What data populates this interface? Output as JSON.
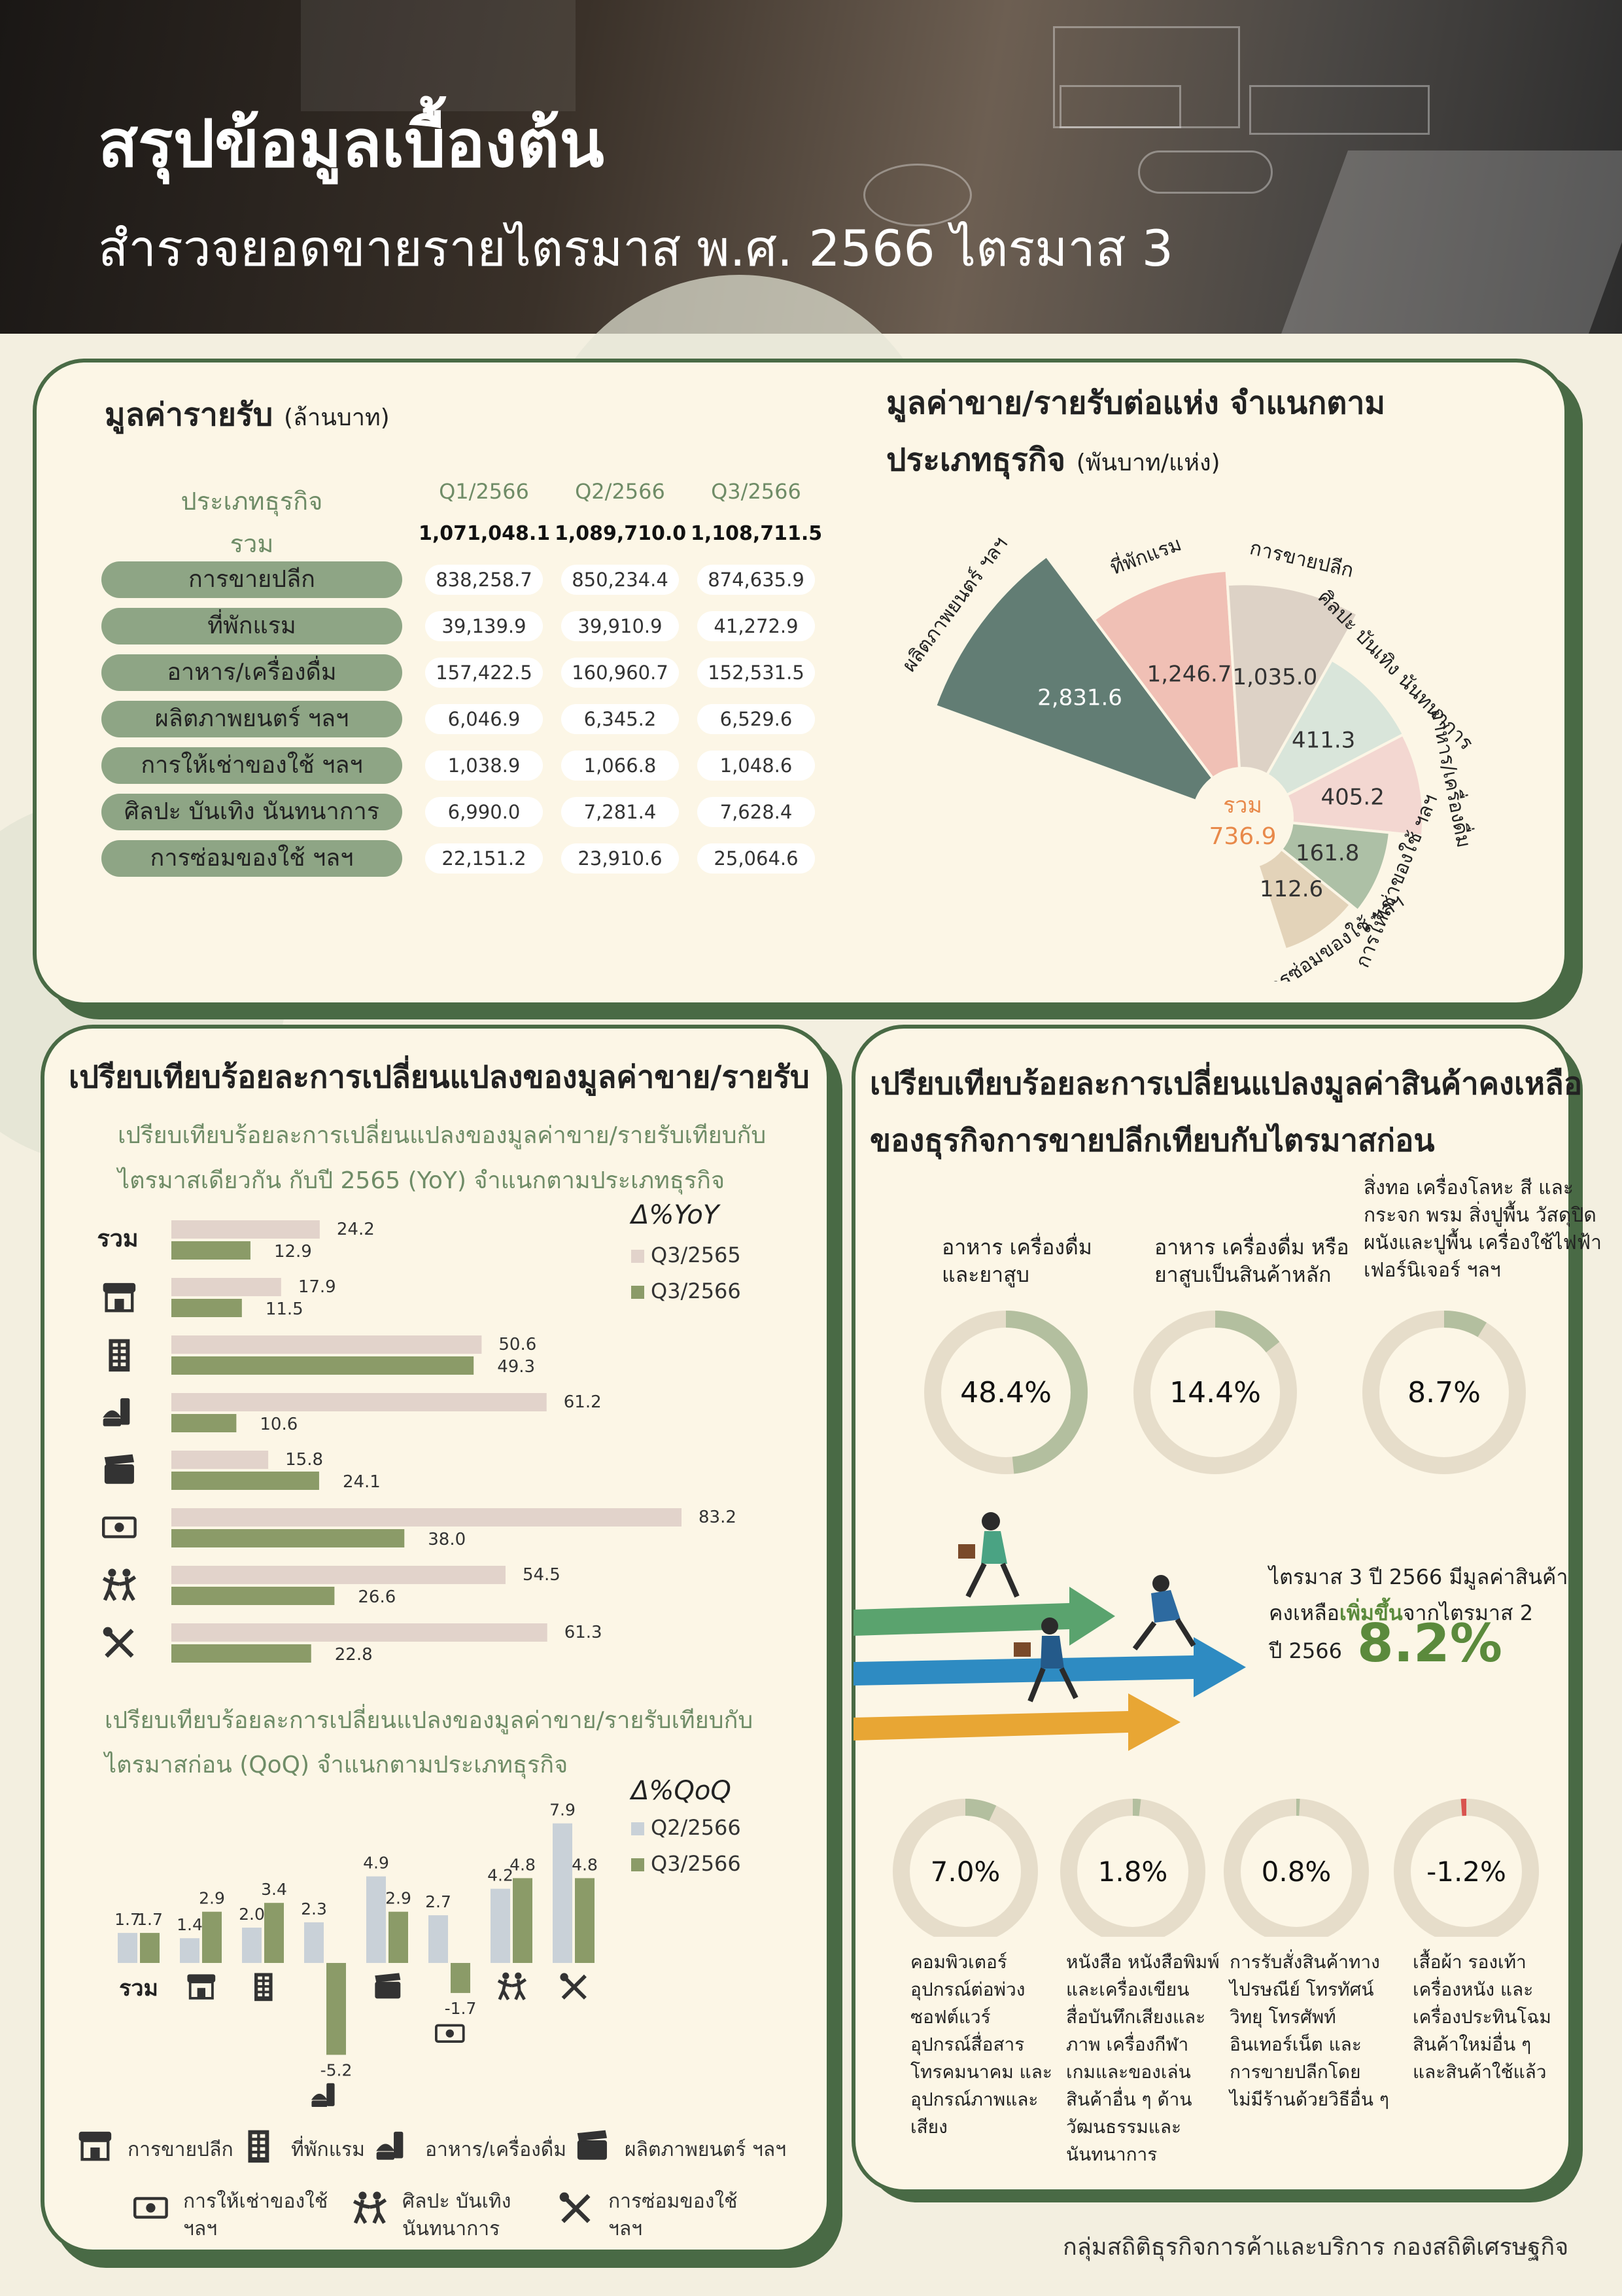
{
  "header": {
    "title": "สรุปข้อมูลเบื้องต้น",
    "subtitle": "สำรวจยอดขายรายไตรมาส พ.ศ. 2566 ไตรมาส 3"
  },
  "revenue_panel": {
    "title": "มูลค่ารายรับ",
    "unit": "(ล้านบาท)",
    "col_label": "ประเภทธุรกิจ",
    "total_label": "รวม",
    "quarters": [
      "Q1/2566",
      "Q2/2566",
      "Q3/2566"
    ],
    "totals": [
      "1,071,048.1",
      "1,089,710.0",
      "1,108,711.5"
    ],
    "rows": [
      {
        "label": "การขายปลีก",
        "values": [
          "838,258.7",
          "850,234.4",
          "874,635.9"
        ]
      },
      {
        "label": "ที่พักแรม",
        "values": [
          "39,139.9",
          "39,910.9",
          "41,272.9"
        ]
      },
      {
        "label": "อาหาร/เครื่องดื่ม",
        "values": [
          "157,422.5",
          "160,960.7",
          "152,531.5"
        ]
      },
      {
        "label": "ผลิตภาพยนตร์ ฯลฯ",
        "values": [
          "6,046.9",
          "6,345.2",
          "6,529.6"
        ]
      },
      {
        "label": "การให้เช่าของใช้ ฯลฯ",
        "values": [
          "1,038.9",
          "1,066.8",
          "1,048.6"
        ]
      },
      {
        "label": "ศิลปะ บันเทิง นันทนาการ",
        "values": [
          "6,990.0",
          "7,281.4",
          "7,628.4"
        ]
      },
      {
        "label": "การซ่อมของใช้ ฯลฯ",
        "values": [
          "22,151.2",
          "23,910.6",
          "25,064.6"
        ]
      }
    ]
  },
  "per_establishment": {
    "title_line1": "มูลค่าขาย/รายรับต่อแห่ง จำแนกตาม",
    "title_line2": "ประเภทธุรกิจ",
    "unit": "(พันบาท/แห่ง)",
    "center_label": "รวม",
    "center_value": "736.9",
    "colors": {
      "film": "#627d74",
      "hotel": "#f0c0b5",
      "retail": "#ddd2c6",
      "arts": "#d9e5da",
      "food": "#f3d7d1",
      "rental": "#adc0a6",
      "repair": "#e3d3b9",
      "center": "#e8894a"
    }
  },
  "chart_data": [
    {
      "type": "pie",
      "title": "มูลค่าขาย/รายรับต่อแห่ง จำแนกตาม ประเภทธุรกิจ (พันบาท/แห่ง)",
      "categories": [
        "ผลิตภาพยนตร์ ฯลฯ",
        "ที่พักแรม",
        "การขายปลีก",
        "ศิลปะ บันเทิง นันทนาการ",
        "อาหาร/เครื่องดื่ม",
        "การให้เช่าของใช้ ฯลฯ",
        "การซ่อมของใช้ ฯลฯ"
      ],
      "values": [
        2831.6,
        1246.7,
        1035.0,
        411.3,
        405.2,
        161.8,
        112.6
      ],
      "value_labels": [
        "2,831.6",
        "1,246.7",
        "1,035.0",
        "411.3",
        "405.2",
        "161.8",
        "112.6"
      ],
      "total": 736.9
    },
    {
      "type": "bar",
      "orientation": "horizontal",
      "title": "เปรียบเทียบร้อยละการเปลี่ยนแปลงของมูลค่าขาย/รายรับเทียบกับไตรมาสเดียวกัน กับปี 2565 (YoY) จำแนกตามประเภทธุรกิจ",
      "legend_title": "Δ%YoY",
      "categories": [
        "รวม",
        "การขายปลีก",
        "ที่พักแรม",
        "อาหาร/เครื่องดื่ม",
        "ผลิตภาพยนตร์ ฯลฯ",
        "การให้เช่าของใช้ ฯลฯ",
        "ศิลปะ บันเทิง นันทนาการ",
        "การซ่อมของใช้ ฯลฯ"
      ],
      "series": [
        {
          "name": "Q3/2565",
          "color": "#e2d3cb",
          "values": [
            24.2,
            17.9,
            50.6,
            61.2,
            15.8,
            83.2,
            54.5,
            61.3
          ]
        },
        {
          "name": "Q3/2566",
          "color": "#8b9b68",
          "values": [
            12.9,
            11.5,
            49.3,
            10.6,
            24.1,
            38.0,
            26.6,
            22.8
          ]
        }
      ]
    },
    {
      "type": "bar",
      "title": "เปรียบเทียบร้อยละการเปลี่ยนแปลงของมูลค่าขาย/รายรับเทียบกับไตรมาสก่อน (QoQ) จำแนกตามประเภทธุรกิจ",
      "legend_title": "Δ%QoQ",
      "categories": [
        "รวม",
        "การขายปลีก",
        "ที่พักแรม",
        "อาหาร/เครื่องดื่ม",
        "ผลิตภาพยนตร์ ฯลฯ",
        "การให้เช่าของใช้ ฯลฯ",
        "ศิลปะ บันเทิง นันทนาการ",
        "การซ่อมของใช้ ฯลฯ"
      ],
      "series": [
        {
          "name": "Q2/2566",
          "color": "#c9d1d8",
          "values": [
            1.7,
            1.4,
            2.0,
            2.3,
            4.9,
            2.7,
            4.2,
            7.9
          ]
        },
        {
          "name": "Q3/2566",
          "color": "#8b9b68",
          "values": [
            1.7,
            2.9,
            3.4,
            -5.2,
            2.9,
            -1.7,
            4.8,
            4.8
          ]
        }
      ]
    },
    {
      "type": "pie",
      "title": "เปรียบเทียบร้อยละการเปลี่ยนแปลงมูลค่าสินค้าคงเหลือของธุรกิจการขายปลีกเทียบกับไตรมาสก่อน",
      "categories": [
        "อาหาร เครื่องดื่ม และยาสูบ",
        "อาหาร เครื่องดื่ม หรือ ยาสูบเป็นสินค้าหลัก",
        "สิ่งทอ เครื่องโลหะ สี และ กระจก พรม สิ่งปูพื้น วัสดุปิด ผนังและปูพื้น เครื่องใช้ไฟฟ้า เฟอร์นิเจอร์ ฯลฯ",
        "คอมพิวเตอร์ อุปกรณ์ต่อพ่วง ซอฟต์แวร์ อุปกรณ์สื่อสาร โทรคมนาคม และ อุปกรณ์ภาพและ เสียง",
        "หนังสือ หนังสือพิมพ์ และเครื่องเขียน สื่อบันทึกเสียงและ ภาพ เครื่องกีฬา เกมและของเล่น สินค้าอื่น ๆ ด้าน วัฒนธรรมและ นันทนาการ",
        "การรับสั่งสินค้าทาง ไปรษณีย์ โทรทัศน์ วิทยุ โทรศัพท์ อินเทอร์เน็ต และ การขายปลีกโดย ไม่มีร้านด้วยวิธีอื่น ๆ",
        "เสื้อผ้า รองเท้า เครื่องหนัง และ เครื่องประทินโฉม สินค้าใหม่อื่น ๆ และสินค้าใช้แล้ว"
      ],
      "values": [
        48.4,
        14.4,
        8.7,
        7.0,
        1.8,
        0.8,
        -1.2
      ],
      "value_labels": [
        "48.4%",
        "14.4%",
        "8.7%",
        "7.0%",
        "1.8%",
        "0.8%",
        "-1.2%"
      ]
    }
  ],
  "yoy_panel": {
    "title": "เปรียบเทียบร้อยละการเปลี่ยนแปลงของมูลค่าขาย/รายรับ",
    "sub_line1": "เปรียบเทียบร้อยละการเปลี่ยนแปลงของมูลค่าขาย/รายรับเทียบกับ",
    "sub_line2": "ไตรมาสเดียวกัน กับปี 2565 (YoY) จำแนกตามประเภทธุรกิจ",
    "legend_title": "Δ%YoY",
    "series_names": [
      "Q3/2565",
      "Q3/2566"
    ],
    "series_colors": [
      "#e2d3cb",
      "#8b9b68"
    ],
    "total_label": "รวม",
    "value_labels_a": [
      "24.2",
      "17.9",
      "50.6",
      "61.2",
      "15.8",
      "83.2",
      "54.5",
      "61.3"
    ],
    "value_labels_b": [
      "12.9",
      "11.5",
      "49.3",
      "10.6",
      "24.1",
      "38.0",
      "26.6",
      "22.8"
    ],
    "icons": [
      "shop-icon",
      "building-icon",
      "food-icon",
      "clapper-icon",
      "money-icon",
      "dance-icon",
      "tools-icon"
    ]
  },
  "qoq_panel": {
    "sub_line1": "เปรียบเทียบร้อยละการเปลี่ยนแปลงของมูลค่าขาย/รายรับเทียบกับ",
    "sub_line2": "ไตรมาสก่อน (QoQ) จำแนกตามประเภทธุรกิจ",
    "legend_title": "Δ%QoQ",
    "series_names": [
      "Q2/2566",
      "Q3/2566"
    ],
    "series_colors": [
      "#c9d1d8",
      "#8b9b68"
    ],
    "total_label": "รวม",
    "value_labels_a": [
      "1.7",
      "1.4",
      "2.0",
      "2.3",
      "4.9",
      "2.7",
      "4.2",
      "7.9"
    ],
    "value_labels_b": [
      "1.7",
      "2.9",
      "3.4",
      "-5.2",
      "2.9",
      "-1.7",
      "4.8",
      "4.8"
    ]
  },
  "legend_bottom": [
    {
      "icon": "shop-icon",
      "label": "การขายปลีก"
    },
    {
      "icon": "building-icon",
      "label": "ที่พักแรม"
    },
    {
      "icon": "food-icon",
      "label": "อาหาร/เครื่องดื่ม"
    },
    {
      "icon": "clapper-icon",
      "label": "ผลิตภาพยนตร์  ฯลฯ"
    },
    {
      "icon": "money-icon",
      "label_line1": "การให้เช่าของใช้",
      "label_line2": "ฯลฯ"
    },
    {
      "icon": "dance-icon",
      "label_line1": "ศิลปะ บันเทิง",
      "label_line2": "นันทนาการ"
    },
    {
      "icon": "tools-icon",
      "label_line1": "การซ่อมของใช้",
      "label_line2": "ฯลฯ"
    }
  ],
  "inventory_panel": {
    "title_line1": "เปรียบเทียบร้อยละการเปลี่ยนแปลงมูลค่าสินค้าคงเหลือ",
    "title_line2": "ของธุรกิจการขายปลีกเทียบกับไตรมาสก่อน",
    "top_labels": [
      {
        "l1": "อาหาร เครื่องดื่ม",
        "l2": "และยาสูบ"
      },
      {
        "l1": "อาหาร เครื่องดื่ม หรือ",
        "l2": "ยาสูบเป็นสินค้าหลัก"
      },
      {
        "l0": "สิ่งทอ เครื่องโลหะ สี และ",
        "l1": "กระจก พรม สิ่งปูพื้น วัสดุปิด",
        "l2": "ผนังและปูพื้น เครื่องใช้ไฟฟ้า",
        "l3": "เฟอร์นิเจอร์ ฯลฯ"
      }
    ],
    "top_values": [
      "48.4%",
      "14.4%",
      "8.7%"
    ],
    "summary_line1": "ไตรมาส 3 ปี 2566 มีมูลค่าสินค้า",
    "summary_pre": "คงเหลือ",
    "summary_highlight": "เพิ่มขึ้น",
    "summary_post": "จากไตรมาส 2",
    "summary_line3": "ปี 2566",
    "summary_value": "8.2%",
    "bottom_values": [
      "7.0%",
      "1.8%",
      "0.8%",
      "-1.2%"
    ],
    "bottom_desc": [
      [
        "คอมพิวเตอร์",
        "อุปกรณ์ต่อพ่วง",
        "ซอฟต์แวร์",
        "อุปกรณ์สื่อสาร",
        "โทรคมนาคม และ",
        "อุปกรณ์ภาพและ",
        "เสียง"
      ],
      [
        "หนังสือ หนังสือพิมพ์",
        "และเครื่องเขียน",
        "สื่อบันทึกเสียงและ",
        "ภาพ เครื่องกีฬา",
        "เกมและของเล่น",
        "สินค้าอื่น ๆ ด้าน",
        "วัฒนธรรมและ",
        "นันทนาการ"
      ],
      [
        "การรับสั่งสินค้าทาง",
        "ไปรษณีย์ โทรทัศน์",
        "วิทยุ โทรศัพท์",
        "อินเทอร์เน็ต และ",
        "การขายปลีกโดย",
        "ไม่มีร้านด้วยวิธีอื่น ๆ"
      ],
      [
        "เสื้อผ้า รองเท้า",
        "เครื่องหนัง และ",
        "เครื่องประทินโฉม",
        "สินค้าใหม่อื่น ๆ",
        "และสินค้าใช้แล้ว"
      ]
    ],
    "colors": {
      "ring": "#e6ddca",
      "ring_fill": "#b3bf9f",
      "negative": "#d9534f",
      "highlight": "#5b8a3c"
    }
  },
  "footer": {
    "text": "กลุ่มสถิติธุรกิจการค้าและบริการ   กองสถิติเศรษฐกิจ"
  }
}
